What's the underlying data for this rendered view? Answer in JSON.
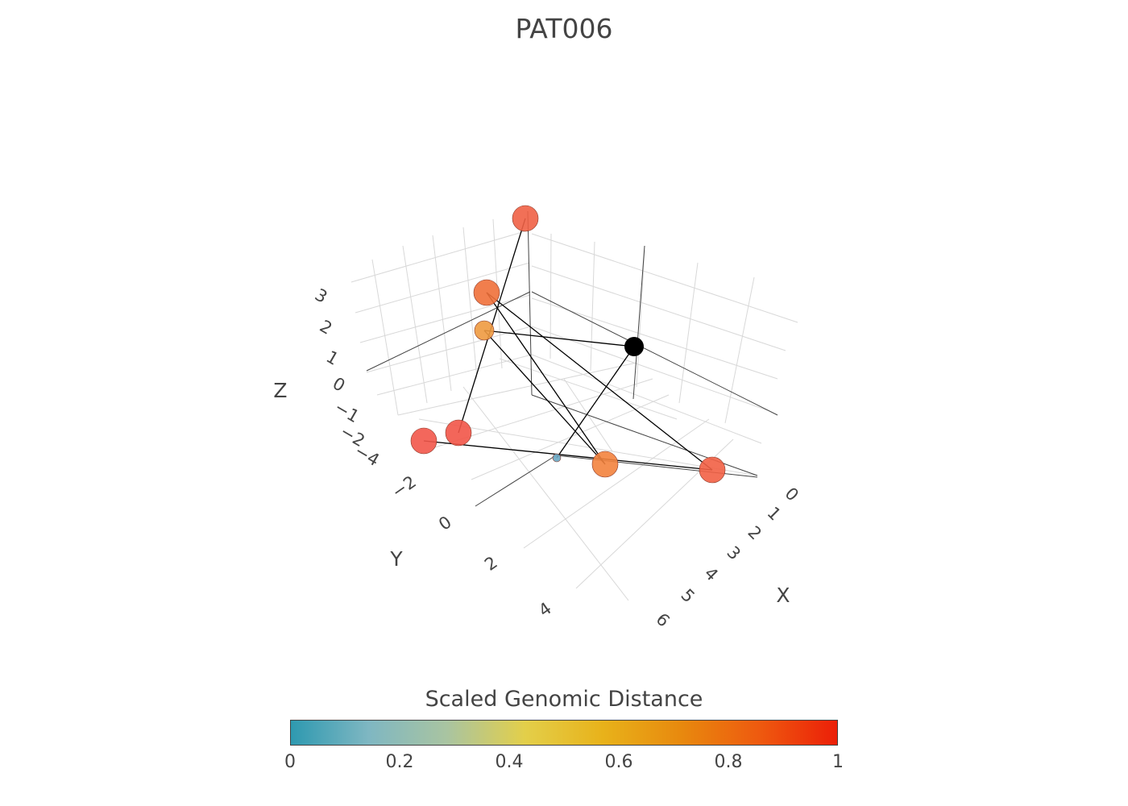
{
  "chart_data": {
    "type": "scatter",
    "title": "PAT006",
    "axes": {
      "x": {
        "label": "X",
        "ticks": [
          "0",
          "1",
          "2",
          "3",
          "4",
          "5",
          "6"
        ]
      },
      "y": {
        "label": "Y",
        "ticks": [
          "−2",
          "0",
          "2",
          "4"
        ]
      },
      "z": {
        "label": "Z",
        "ticks": [
          "3",
          "2",
          "1",
          "0",
          "−1",
          "−2",
          "−4"
        ]
      }
    },
    "grid": true,
    "colorbar": {
      "title": "Scaled Genomic Distance",
      "ticks": [
        "0",
        "0.2",
        "0.4",
        "0.6",
        "0.8",
        "1"
      ],
      "colors": [
        "#2e99b0",
        "#7fb7c2",
        "#a9c4a1",
        "#e3cf4a",
        "#e8b21a",
        "#e8890e",
        "#ee5a0f",
        "#ec1f08"
      ]
    },
    "points": [
      {
        "id": "p1",
        "value": 0.9,
        "color": "#f06145",
        "size": "large"
      },
      {
        "id": "p2",
        "value": 0.85,
        "color": "#f0703a",
        "size": "large"
      },
      {
        "id": "p3",
        "value": 0.7,
        "color": "#ee9a40",
        "size": "medium"
      },
      {
        "id": "p4",
        "value": 0.92,
        "color": "#f2574a",
        "size": "large"
      },
      {
        "id": "p5",
        "value": 0.93,
        "color": "#f25548",
        "size": "large"
      },
      {
        "id": "p6",
        "value": 0.1,
        "color": "#6aa8c4",
        "size": "small"
      },
      {
        "id": "p7",
        "value": 0.8,
        "color": "#f3833e",
        "size": "large"
      },
      {
        "id": "p8",
        "value": 0.9,
        "color": "#f26145",
        "size": "large"
      },
      {
        "id": "ref",
        "value": null,
        "color": "#000000",
        "size": "medium"
      }
    ],
    "connections": [
      [
        "p1",
        "p5"
      ],
      [
        "p2",
        "p7"
      ],
      [
        "p2",
        "p8"
      ],
      [
        "p3",
        "ref"
      ],
      [
        "p3",
        "p7"
      ],
      [
        "p4",
        "p8"
      ],
      [
        "ref",
        "p6"
      ]
    ]
  }
}
